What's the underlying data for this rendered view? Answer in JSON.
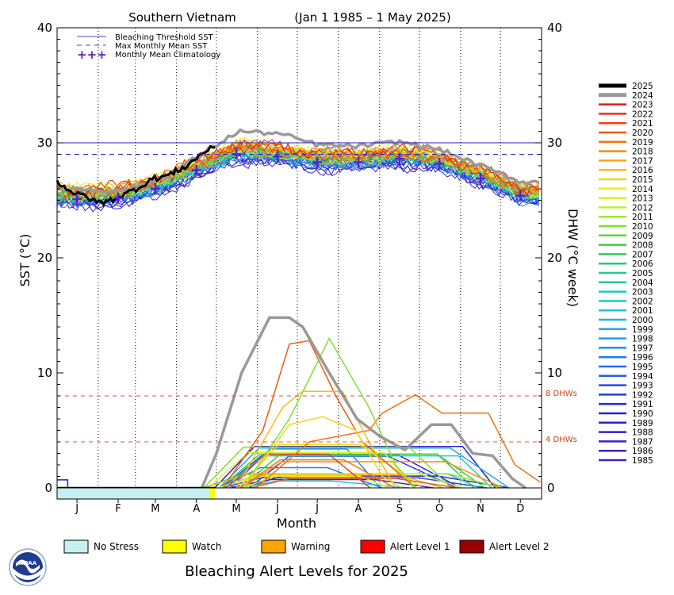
{
  "chart_data": {
    "type": "line",
    "title": "Southern Vietnam",
    "date_range": "(Jan 1 1985 – 1 May 2025)",
    "xlabel": "Month",
    "ylabel_left": "SST (°C)",
    "ylabel_right": "DHW (°C week)",
    "months": [
      "J",
      "F",
      "M",
      "A",
      "M",
      "J",
      "J",
      "A",
      "S",
      "O",
      "N",
      "D"
    ],
    "ylim": [
      0,
      40
    ],
    "yticks": [
      0,
      10,
      20,
      30,
      40
    ],
    "grid": "vertical dotted lines at month boundaries",
    "bleaching_threshold_sst": 30.0,
    "max_monthly_mean_sst": 29.0,
    "dhw_reference_levels": [
      {
        "value": 4,
        "label": "4 DHWs"
      },
      {
        "value": 8,
        "label": "8 DHWs"
      }
    ],
    "monthly_mean_climatology": {
      "month": [
        1,
        2,
        3,
        4,
        5,
        6,
        7,
        8,
        9,
        10,
        11,
        12
      ],
      "sst": [
        25.1,
        25.2,
        26.0,
        27.6,
        29.0,
        28.8,
        28.3,
        28.3,
        28.6,
        28.2,
        26.9,
        25.4
      ]
    },
    "legend": [
      {
        "label": "Bleaching Threshold SST",
        "style": "solid",
        "color": "#2222cc"
      },
      {
        "label": "Max Monthly Mean SST",
        "style": "dashed",
        "color": "#2222cc"
      },
      {
        "label": "Monthly Mean Climatology",
        "style": "plus",
        "color": "#5522cc"
      }
    ],
    "years": [
      "2025",
      "2024",
      "2023",
      "2022",
      "2021",
      "2020",
      "2019",
      "2018",
      "2017",
      "2016",
      "2015",
      "2014",
      "2013",
      "2012",
      "2011",
      "2010",
      "2009",
      "2008",
      "2007",
      "2006",
      "2005",
      "2004",
      "2003",
      "2002",
      "2001",
      "2000",
      "1999",
      "1998",
      "1997",
      "1996",
      "1995",
      "1994",
      "1993",
      "1992",
      "1991",
      "1990",
      "1989",
      "1988",
      "1987",
      "1986",
      "1985"
    ],
    "year_colors": [
      "#000000",
      "#999999",
      "#e41a1c",
      "#ee2a14",
      "#f23f12",
      "#f25a10",
      "#f5730e",
      "#f78c0c",
      "#f7a50e",
      "#f8bd12",
      "#f5d51a",
      "#eeeb22",
      "#d8f02a",
      "#bdf02e",
      "#9ee830",
      "#7ee030",
      "#5cd832",
      "#3cd03c",
      "#2ecc55",
      "#28c86e",
      "#26c888",
      "#24c8a0",
      "#22c8b8",
      "#22c8cc",
      "#22c0dc",
      "#22b4e4",
      "#22a8ea",
      "#229cee",
      "#228cf0",
      "#227cf0",
      "#226cee",
      "#225cea",
      "#224ce6",
      "#223ce0",
      "#222cdc",
      "#2222d6",
      "#2820d0",
      "#3020ca",
      "#3820c4",
      "#4020c0",
      "#4a20bc"
    ],
    "series_2025_sst": {
      "date": [
        "01-01",
        "01-08",
        "01-15",
        "01-22",
        "01-29",
        "02-05",
        "02-12",
        "02-19",
        "02-26",
        "03-05",
        "03-12",
        "03-19",
        "03-26",
        "04-02",
        "04-09",
        "04-16",
        "04-23",
        "04-30"
      ],
      "sst": [
        26.6,
        26.1,
        25.5,
        25.4,
        24.9,
        24.8,
        25.1,
        25.4,
        25.8,
        26.2,
        26.8,
        27.0,
        27.2,
        27.6,
        28.0,
        28.7,
        29.3,
        29.6
      ]
    },
    "series_2024_sst": {
      "month": [
        1,
        2,
        3,
        4,
        5,
        6,
        7,
        8,
        9,
        10,
        11,
        12
      ],
      "sst": [
        26.0,
        25.8,
        26.7,
        28.8,
        31.0,
        30.8,
        29.8,
        29.7,
        30.1,
        29.4,
        28.0,
        26.6
      ]
    },
    "series_2024_dhw": {
      "date": [
        "04-20",
        "05-01",
        "05-20",
        "06-10",
        "06-25",
        "07-05",
        "07-25",
        "08-15",
        "09-01",
        "09-20",
        "10-10",
        "10-25",
        "11-10",
        "11-25",
        "12-10",
        "12-20"
      ],
      "dhw": [
        0,
        3.0,
        10.0,
        14.8,
        14.8,
        14.0,
        10.0,
        6.0,
        4.5,
        3.3,
        5.5,
        5.5,
        3.0,
        2.8,
        0.8,
        0
      ]
    },
    "peak_dhw_other_years": [
      {
        "year": "2019",
        "peak": 8.1,
        "around": "Oct"
      },
      {
        "year": "2020",
        "peak": 12.7,
        "around": "Jun"
      },
      {
        "year": "2010",
        "peak": 13.0,
        "around": "Jul"
      },
      {
        "year": "2016",
        "peak": 8.4,
        "around": "Jul"
      },
      {
        "year": "2015",
        "peak": 6.2,
        "around": "Jul"
      }
    ],
    "alert_bar_2025": [
      {
        "level": "No Stress",
        "from": "01-01",
        "to": "04-26"
      },
      {
        "level": "Watch",
        "from": "04-26",
        "to": "04-30"
      }
    ]
  },
  "alert_legend": {
    "title": "Bleaching Alert Levels for 2025",
    "items": [
      {
        "label": "No Stress",
        "color": "#c6f0f0"
      },
      {
        "label": "Watch",
        "color": "#ffff00"
      },
      {
        "label": "Warning",
        "color": "#ffa500"
      },
      {
        "label": "Alert Level 1",
        "color": "#ff0000"
      },
      {
        "label": "Alert Level 2",
        "color": "#990000"
      }
    ]
  },
  "logo_text": "NOAA"
}
